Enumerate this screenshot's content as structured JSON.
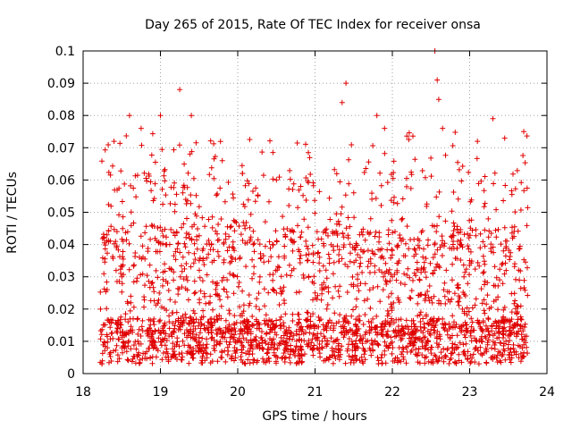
{
  "chart_data": {
    "type": "scatter",
    "title": "Day 265 of 2015, Rate Of TEC Index for receiver onsa",
    "xlabel": "GPS time / hours",
    "ylabel": "ROTI / TECUs",
    "xlim": [
      18,
      24
    ],
    "ylim": [
      0,
      0.1
    ],
    "xticks": [
      "18",
      "19",
      "20",
      "21",
      "22",
      "23",
      "24"
    ],
    "yticks": [
      "0",
      "0.01",
      "0.02",
      "0.03",
      "0.04",
      "0.05",
      "0.06",
      "0.07",
      "0.08",
      "0.09",
      "0.1"
    ],
    "grid": true,
    "marker": "plus",
    "series_color": "#e00000",
    "series": [
      {
        "name": "ROTI",
        "x_range": [
          18.22,
          23.75
        ],
        "sample_points": [
          [
            18.4,
            0.072
          ],
          [
            18.6,
            0.08
          ],
          [
            18.75,
            0.076
          ],
          [
            19.0,
            0.08
          ],
          [
            19.25,
            0.088
          ],
          [
            19.4,
            0.08
          ],
          [
            19.8,
            0.066
          ],
          [
            20.5,
            0.06
          ],
          [
            21.4,
            0.09
          ],
          [
            21.35,
            0.084
          ],
          [
            21.8,
            0.08
          ],
          [
            21.9,
            0.076
          ],
          [
            22.55,
            0.1
          ],
          [
            22.58,
            0.091
          ],
          [
            22.6,
            0.085
          ],
          [
            22.65,
            0.076
          ],
          [
            23.1,
            0.072
          ],
          [
            23.3,
            0.079
          ],
          [
            23.7,
            0.075
          ],
          [
            18.5,
            0.03
          ],
          [
            19.5,
            0.035
          ],
          [
            20.2,
            0.04
          ],
          [
            21.0,
            0.025
          ],
          [
            22.0,
            0.03
          ],
          [
            23.0,
            0.035
          ],
          [
            18.5,
            0.008
          ],
          [
            19.5,
            0.01
          ],
          [
            20.5,
            0.012
          ],
          [
            21.5,
            0.004
          ],
          [
            22.3,
            0.006
          ],
          [
            23.5,
            0.009
          ]
        ]
      }
    ]
  }
}
